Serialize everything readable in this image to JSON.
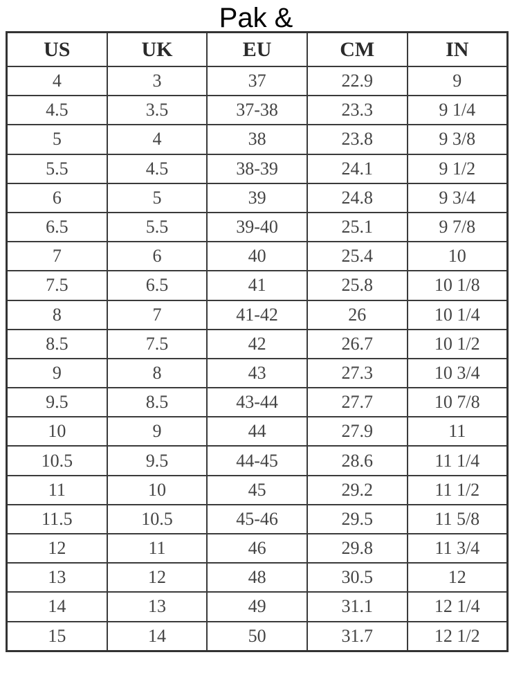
{
  "title": "Pak &",
  "table": {
    "headers": [
      "US",
      "UK",
      "EU",
      "CM",
      "IN"
    ],
    "rows": [
      [
        "4",
        "3",
        "37",
        "22.9",
        "9"
      ],
      [
        "4.5",
        "3.5",
        "37-38",
        "23.3",
        "9 1/4"
      ],
      [
        "5",
        "4",
        "38",
        "23.8",
        "9 3/8"
      ],
      [
        "5.5",
        "4.5",
        "38-39",
        "24.1",
        "9 1/2"
      ],
      [
        "6",
        "5",
        "39",
        "24.8",
        "9 3/4"
      ],
      [
        "6.5",
        "5.5",
        "39-40",
        "25.1",
        "9 7/8"
      ],
      [
        "7",
        "6",
        "40",
        "25.4",
        "10"
      ],
      [
        "7.5",
        "6.5",
        "41",
        "25.8",
        "10 1/8"
      ],
      [
        "8",
        "7",
        "41-42",
        "26",
        "10 1/4"
      ],
      [
        "8.5",
        "7.5",
        "42",
        "26.7",
        "10 1/2"
      ],
      [
        "9",
        "8",
        "43",
        "27.3",
        "10 3/4"
      ],
      [
        "9.5",
        "8.5",
        "43-44",
        "27.7",
        "10 7/8"
      ],
      [
        "10",
        "9",
        "44",
        "27.9",
        "11"
      ],
      [
        "10.5",
        "9.5",
        "44-45",
        "28.6",
        "11 1/4"
      ],
      [
        "11",
        "10",
        "45",
        "29.2",
        "11 1/2"
      ],
      [
        "11.5",
        "10.5",
        "45-46",
        "29.5",
        "11 5/8"
      ],
      [
        "12",
        "11",
        "46",
        "29.8",
        "11 3/4"
      ],
      [
        "13",
        "12",
        "48",
        "30.5",
        "12"
      ],
      [
        "14",
        "13",
        "49",
        "31.1",
        "12 1/4"
      ],
      [
        "15",
        "14",
        "50",
        "31.7",
        "12 1/2"
      ]
    ]
  }
}
